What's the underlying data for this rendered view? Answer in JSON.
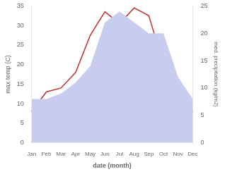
{
  "chart_data": {
    "type": "line",
    "categories": [
      "Jan",
      "Feb",
      "Mar",
      "Apr",
      "May",
      "Jun",
      "Jul",
      "Aug",
      "Sep",
      "Oct",
      "Nov",
      "Dec"
    ],
    "series": [
      {
        "type": "area",
        "axis": "y2",
        "color": "#c8ccee",
        "values": [
          8,
          8,
          9,
          11,
          14,
          22,
          24,
          22,
          20,
          20,
          12,
          8
        ]
      },
      {
        "type": "line",
        "color": "#c03030",
        "values": [
          8,
          13,
          14,
          18,
          27.5,
          33.5,
          30.5,
          34.5,
          32.5,
          20,
          8,
          8
        ]
      }
    ],
    "xlabel": "date (month)",
    "ylabel": "max temp (C)",
    "y2label": "med. precipitation (kg/m2)",
    "ylim": [
      0,
      35
    ],
    "yticks": [
      0,
      5,
      10,
      15,
      20,
      25,
      30,
      35
    ],
    "y2lim": [
      0,
      25
    ],
    "y2ticks": [
      0,
      5,
      10,
      15,
      20,
      25
    ],
    "grid": false
  }
}
